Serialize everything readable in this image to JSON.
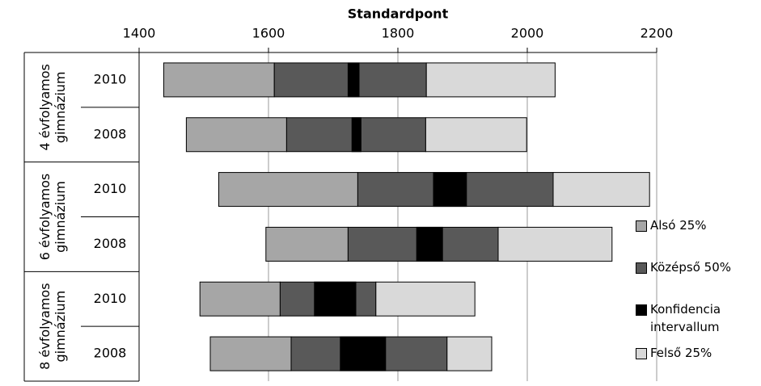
{
  "chart_data": {
    "type": "range-bar",
    "x_label": "Standardpont",
    "xlim": [
      1400,
      2200
    ],
    "xticks": [
      1400,
      1600,
      1800,
      2000,
      2200
    ],
    "grid": true,
    "groups": [
      {
        "label": [
          "4 évfolyamos",
          "gimnázium"
        ],
        "categories": [
          "2010",
          "2008"
        ]
      },
      {
        "label": [
          "6 évfolyamos",
          "gimnázium"
        ],
        "categories": [
          "2010",
          "2008"
        ]
      },
      {
        "label": [
          "8 évfolyamos",
          "gimnázium"
        ],
        "categories": [
          "2010",
          "2008"
        ]
      }
    ],
    "series": [
      {
        "name": "Alsó 25%",
        "color": "#a6a6a6",
        "values": [
          [
            1438,
            1609
          ],
          [
            1473,
            1628
          ],
          [
            1523,
            1738
          ],
          [
            1596,
            1723
          ],
          [
            1494,
            1618
          ],
          [
            1510,
            1635
          ]
        ]
      },
      {
        "name": "Középső 50%",
        "color": "#595959",
        "values": [
          [
            1609,
            1844
          ],
          [
            1628,
            1843
          ],
          [
            1738,
            2040
          ],
          [
            1723,
            1955
          ],
          [
            1618,
            1766
          ],
          [
            1635,
            1876
          ]
        ]
      },
      {
        "name": "Konfidencia intervallum",
        "color": "#000000",
        "values": [
          [
            1723,
            1740
          ],
          [
            1729,
            1743
          ],
          [
            1855,
            1906
          ],
          [
            1829,
            1869
          ],
          [
            1671,
            1735
          ],
          [
            1711,
            1781
          ]
        ]
      },
      {
        "name": "Felső 25%",
        "color": "#d9d9d9",
        "values": [
          [
            1844,
            2043
          ],
          [
            1843,
            1999
          ],
          [
            2040,
            2189
          ],
          [
            1955,
            2131
          ],
          [
            1766,
            1919
          ],
          [
            1876,
            1945
          ]
        ]
      }
    ]
  }
}
